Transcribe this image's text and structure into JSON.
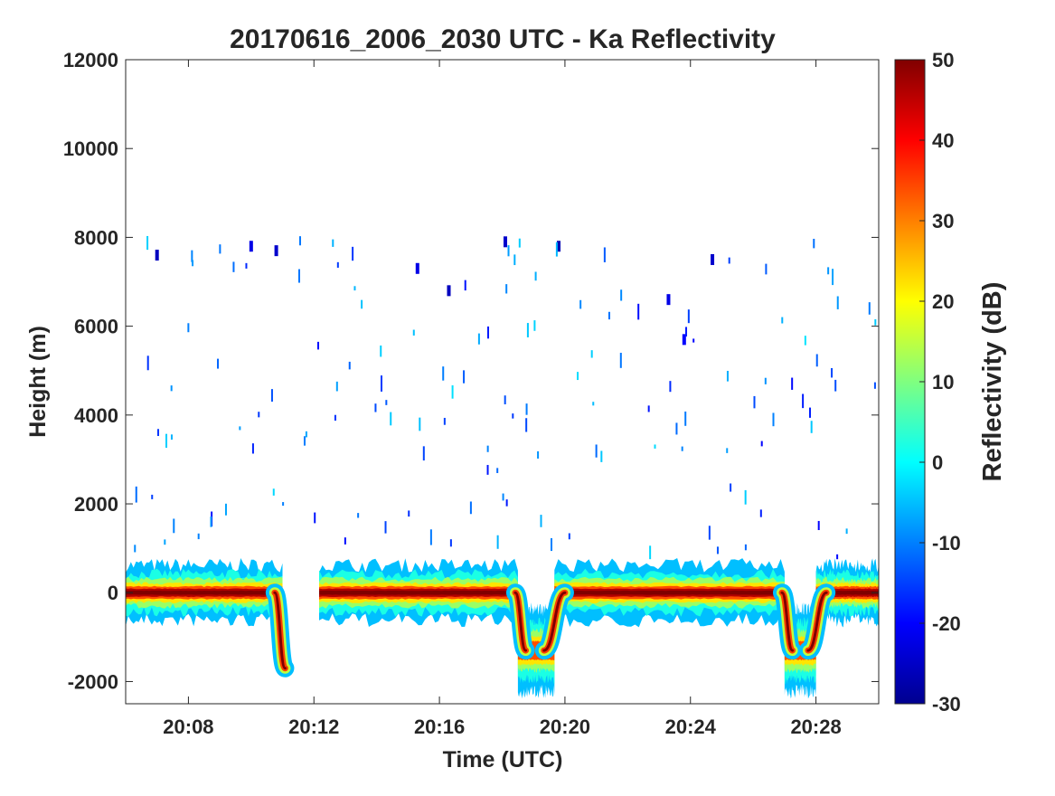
{
  "chart_data": {
    "type": "heatmap",
    "title": "20170616_2006_2030 UTC - Ka Reflectivity",
    "xlabel": "Time (UTC)",
    "ylabel": "Height (m)",
    "x_unit": "minutes",
    "xlim": [
      "20:06",
      "20:30"
    ],
    "x_ticks": [
      "20:08",
      "20:12",
      "20:16",
      "20:20",
      "20:24",
      "20:28"
    ],
    "ylim": [
      -2500,
      12000
    ],
    "y_ticks": [
      -2000,
      0,
      2000,
      4000,
      6000,
      8000,
      10000,
      12000
    ],
    "colorbar": {
      "label": "Reflectivity (dB)",
      "range": [
        -30,
        50
      ],
      "ticks": [
        -30,
        -20,
        -10,
        0,
        10,
        20,
        30,
        40,
        50
      ],
      "colormap": "jet"
    },
    "grid": false,
    "surface_echo": [
      {
        "start": "20:06",
        "end": "20:11",
        "center_height_m": 0,
        "peak_dB": 50,
        "note": "ends with descent to about -1800 m near 20:11"
      },
      {
        "start": "20:12:10",
        "end": "20:18:30",
        "center_height_m": 0,
        "peak_dB": 50
      },
      {
        "start": "20:18:30",
        "end": "20:19:40",
        "center_height_m": -1300,
        "peak_dB": 35
      },
      {
        "start": "20:19:40",
        "end": "20:27",
        "center_height_m": 0,
        "peak_dB": 50
      },
      {
        "start": "20:27",
        "end": "20:28",
        "center_height_m": -1300,
        "peak_dB": 35
      },
      {
        "start": "20:28",
        "end": "20:30",
        "center_height_m": 0,
        "peak_dB": 50
      }
    ],
    "data_gap": {
      "start": "20:11:05",
      "end": "20:12:10"
    },
    "sparse_echoes": [
      {
        "time": "20:07",
        "height_m": 7600,
        "dB": -25
      },
      {
        "time": "20:10",
        "height_m": 7800,
        "dB": -22
      },
      {
        "time": "20:10.8",
        "height_m": 7700,
        "dB": -24
      },
      {
        "time": "20:16.3",
        "height_m": 6800,
        "dB": -25
      },
      {
        "time": "20:15.3",
        "height_m": 7300,
        "dB": -22
      },
      {
        "time": "20:18.1",
        "height_m": 7900,
        "dB": -24
      },
      {
        "time": "20:19.8",
        "height_m": 7800,
        "dB": -26
      },
      {
        "time": "20:24.7",
        "height_m": 7500,
        "dB": -24
      },
      {
        "time": "20:23.3",
        "height_m": 6600,
        "dB": -22
      },
      {
        "time": "20:23.8",
        "height_m": 5700,
        "dB": -20
      }
    ]
  }
}
